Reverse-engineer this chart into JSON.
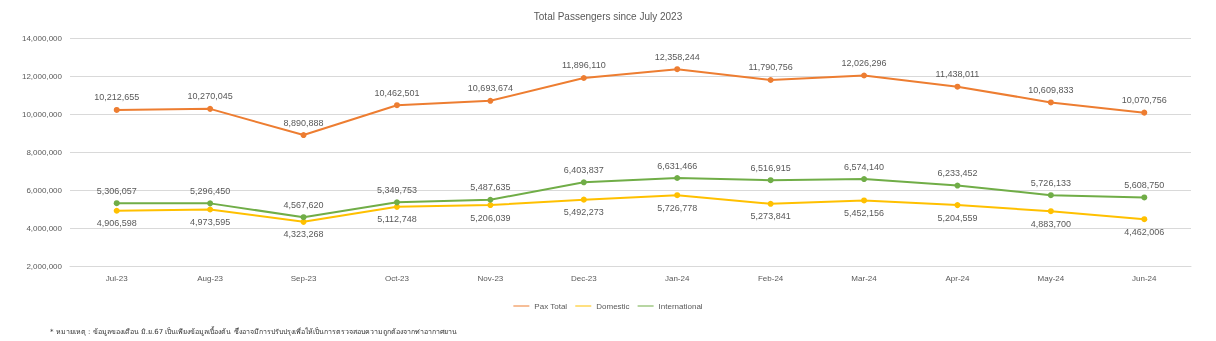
{
  "chart_data": {
    "type": "line",
    "title": "Total Passengers since July 2023",
    "categories": [
      "Jul-23",
      "Aug-23",
      "Sep-23",
      "Oct-23",
      "Nov-23",
      "Dec-23",
      "Jan-24",
      "Feb-24",
      "Mar-24",
      "Apr-24",
      "May-24",
      "Jun-24"
    ],
    "series": [
      {
        "name": "Pax Total",
        "color": "#ed7d31",
        "values": [
          10212655,
          10270045,
          8890888,
          10462501,
          10693674,
          11896110,
          12358244,
          11790756,
          12026296,
          11438011,
          10609833,
          10070756
        ],
        "value_labels": [
          "10,212,655",
          "10,270,045",
          "8,890,888",
          "10,462,501",
          "10,693,674",
          "11,896,110",
          "12,358,244",
          "11,790,756",
          "12,026,296",
          "11,438,011",
          "10,609,833",
          "10,070,756"
        ]
      },
      {
        "name": "Domestic",
        "color": "#ffc000",
        "values": [
          4906598,
          4973595,
          4323268,
          5112748,
          5206039,
          5492273,
          5726778,
          5273841,
          5452156,
          5204559,
          4883700,
          4462006
        ],
        "value_labels": [
          "4,906,598",
          "4,973,595",
          "4,323,268",
          "5,112,748",
          "5,206,039",
          "5,492,273",
          "5,726,778",
          "5,273,841",
          "5,452,156",
          "5,204,559",
          "4,883,700",
          "4,462,006"
        ]
      },
      {
        "name": "International",
        "color": "#70ad47",
        "values": [
          5306057,
          5296450,
          4567620,
          5349753,
          5487635,
          6403837,
          6631466,
          6516915,
          6574140,
          6233452,
          5726133,
          5608750
        ],
        "value_labels": [
          "5,306,057",
          "5,296,450",
          "4,567,620",
          "5,349,753",
          "5,487,635",
          "6,403,837",
          "6,631,466",
          "6,516,915",
          "6,574,140",
          "6,233,452",
          "5,726,133",
          "5,608,750"
        ]
      }
    ],
    "ylim": [
      2000000,
      14000000
    ],
    "yticks": [
      {
        "value": 2000000,
        "label": "2,000,000"
      },
      {
        "value": 4000000,
        "label": "4,000,000"
      },
      {
        "value": 6000000,
        "label": "6,000,000"
      },
      {
        "value": 8000000,
        "label": "8,000,000"
      },
      {
        "value": 10000000,
        "label": "10,000,000"
      },
      {
        "value": 12000000,
        "label": "12,000,000"
      },
      {
        "value": 14000000,
        "label": "14,000,000"
      }
    ],
    "grid": "y",
    "legend": "bottom",
    "marker": "circle",
    "line_style": "solid",
    "annotations": [
      "* หมายเหตุ : ข้อมูลของเดือน มิ.ย.67 เป็นเพียงข้อมูลเบื้องต้น ซึ่งอาจมีการปรับปรุงเพื่อให้เป็นการตรวจสอบความถูกต้องจากท่าอากาศยาน"
    ]
  }
}
